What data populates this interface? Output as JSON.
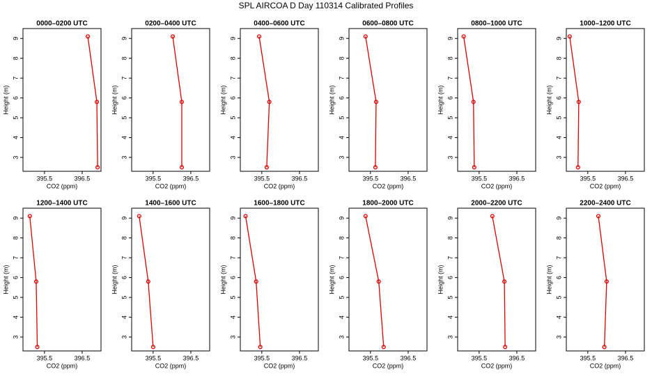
{
  "title": "SPL AIRCOA D  Day 110314  Calibrated Profiles",
  "chart_data": [
    {
      "type": "line",
      "title": "0000–0200 UTC",
      "xlabel": "CO2 (ppm)",
      "ylabel": "Height (m)",
      "color": "#e00000",
      "y": [
        9.1,
        5.8,
        2.5
      ],
      "values": [
        396.65,
        396.89,
        396.91
      ],
      "xlim": [
        394.93,
        397.0
      ],
      "xticks": [
        395.5,
        396.5
      ],
      "ylim": [
        2.3,
        9.5
      ],
      "yticks": [
        3,
        4,
        5,
        6,
        7,
        8,
        9
      ]
    },
    {
      "type": "line",
      "title": "0200–0400 UTC",
      "xlabel": "CO2 (ppm)",
      "ylabel": "Height (m)",
      "color": "#e00000",
      "y": [
        9.1,
        5.8,
        2.5
      ],
      "values": [
        396.02,
        396.26,
        396.26
      ],
      "xlim": [
        394.93,
        397.0
      ],
      "xticks": [
        395.5,
        396.5
      ],
      "ylim": [
        2.3,
        9.5
      ],
      "yticks": [
        3,
        4,
        5,
        6,
        7,
        8,
        9
      ]
    },
    {
      "type": "line",
      "title": "0400–0600 UTC",
      "xlabel": "CO2 (ppm)",
      "ylabel": "Height (m)",
      "color": "#e00000",
      "y": [
        9.1,
        5.8,
        2.5
      ],
      "values": [
        395.43,
        395.7,
        395.63
      ],
      "xlim": [
        394.93,
        397.0
      ],
      "xticks": [
        395.5,
        396.5
      ],
      "ylim": [
        2.3,
        9.5
      ],
      "yticks": [
        3,
        4,
        5,
        6,
        7,
        8,
        9
      ]
    },
    {
      "type": "line",
      "title": "0600–0800 UTC",
      "xlabel": "CO2 (ppm)",
      "ylabel": "Height (m)",
      "color": "#e00000",
      "y": [
        9.1,
        5.8,
        2.5
      ],
      "values": [
        395.37,
        395.65,
        395.63
      ],
      "xlim": [
        394.93,
        397.0
      ],
      "xticks": [
        395.5,
        396.5
      ],
      "ylim": [
        2.3,
        9.5
      ],
      "yticks": [
        3,
        4,
        5,
        6,
        7,
        8,
        9
      ]
    },
    {
      "type": "line",
      "title": "0800–1000 UTC",
      "xlabel": "CO2 (ppm)",
      "ylabel": "Height (m)",
      "color": "#e00000",
      "y": [
        9.1,
        5.8,
        2.5
      ],
      "values": [
        395.09,
        395.35,
        395.37
      ],
      "xlim": [
        394.93,
        397.0
      ],
      "xticks": [
        395.5,
        396.5
      ],
      "ylim": [
        2.3,
        9.5
      ],
      "yticks": [
        3,
        4,
        5,
        6,
        7,
        8,
        9
      ]
    },
    {
      "type": "line",
      "title": "1000–1200 UTC",
      "xlabel": "CO2 (ppm)",
      "ylabel": "Height (m)",
      "color": "#e00000",
      "y": [
        9.1,
        5.8,
        2.5
      ],
      "values": [
        395.02,
        395.26,
        395.24
      ],
      "xlim": [
        394.93,
        397.0
      ],
      "xticks": [
        395.5,
        396.5
      ],
      "ylim": [
        2.3,
        9.5
      ],
      "yticks": [
        3,
        4,
        5,
        6,
        7,
        8,
        9
      ]
    },
    {
      "type": "line",
      "title": "1200–1400 UTC",
      "xlabel": "CO2 (ppm)",
      "ylabel": "Height (m)",
      "color": "#e00000",
      "y": [
        9.1,
        5.8,
        2.5
      ],
      "values": [
        395.11,
        395.28,
        395.31
      ],
      "xlim": [
        394.93,
        397.0
      ],
      "xticks": [
        395.5,
        396.5
      ],
      "ylim": [
        2.3,
        9.5
      ],
      "yticks": [
        3,
        4,
        5,
        6,
        7,
        8,
        9
      ]
    },
    {
      "type": "line",
      "title": "1400–1600 UTC",
      "xlabel": "CO2 (ppm)",
      "ylabel": "Height (m)",
      "color": "#e00000",
      "y": [
        9.1,
        5.8,
        2.5
      ],
      "values": [
        395.13,
        395.37,
        395.5
      ],
      "xlim": [
        394.93,
        397.0
      ],
      "xticks": [
        395.5,
        396.5
      ],
      "ylim": [
        2.3,
        9.5
      ],
      "yticks": [
        3,
        4,
        5,
        6,
        7,
        8,
        9
      ]
    },
    {
      "type": "line",
      "title": "1600–1800 UTC",
      "xlabel": "CO2 (ppm)",
      "ylabel": "Height (m)",
      "color": "#e00000",
      "y": [
        9.1,
        5.8,
        2.5
      ],
      "values": [
        395.07,
        395.35,
        395.46
      ],
      "xlim": [
        394.93,
        397.0
      ],
      "xticks": [
        395.5,
        396.5
      ],
      "ylim": [
        2.3,
        9.5
      ],
      "yticks": [
        3,
        4,
        5,
        6,
        7,
        8,
        9
      ]
    },
    {
      "type": "line",
      "title": "1800–2000 UTC",
      "xlabel": "CO2 (ppm)",
      "ylabel": "Height (m)",
      "color": "#e00000",
      "y": [
        9.1,
        5.8,
        2.5
      ],
      "values": [
        395.37,
        395.72,
        395.85
      ],
      "xlim": [
        394.93,
        397.0
      ],
      "xticks": [
        395.5,
        396.5
      ],
      "ylim": [
        2.3,
        9.5
      ],
      "yticks": [
        3,
        4,
        5,
        6,
        7,
        8,
        9
      ]
    },
    {
      "type": "line",
      "title": "2000–2200 UTC",
      "xlabel": "CO2 (ppm)",
      "ylabel": "Height (m)",
      "color": "#e00000",
      "y": [
        9.1,
        5.8,
        2.5
      ],
      "values": [
        395.85,
        396.17,
        396.19
      ],
      "xlim": [
        394.93,
        397.0
      ],
      "xticks": [
        395.5,
        396.5
      ],
      "ylim": [
        2.3,
        9.5
      ],
      "yticks": [
        3,
        4,
        5,
        6,
        7,
        8,
        9
      ]
    },
    {
      "type": "line",
      "title": "2200–2400 UTC",
      "xlabel": "CO2 (ppm)",
      "ylabel": "Height (m)",
      "color": "#e00000",
      "y": [
        9.1,
        5.8,
        2.5
      ],
      "values": [
        395.78,
        396.0,
        395.94
      ],
      "xlim": [
        394.93,
        397.0
      ],
      "xticks": [
        395.5,
        396.5
      ],
      "ylim": [
        2.3,
        9.5
      ],
      "yticks": [
        3,
        4,
        5,
        6,
        7,
        8,
        9
      ]
    }
  ]
}
